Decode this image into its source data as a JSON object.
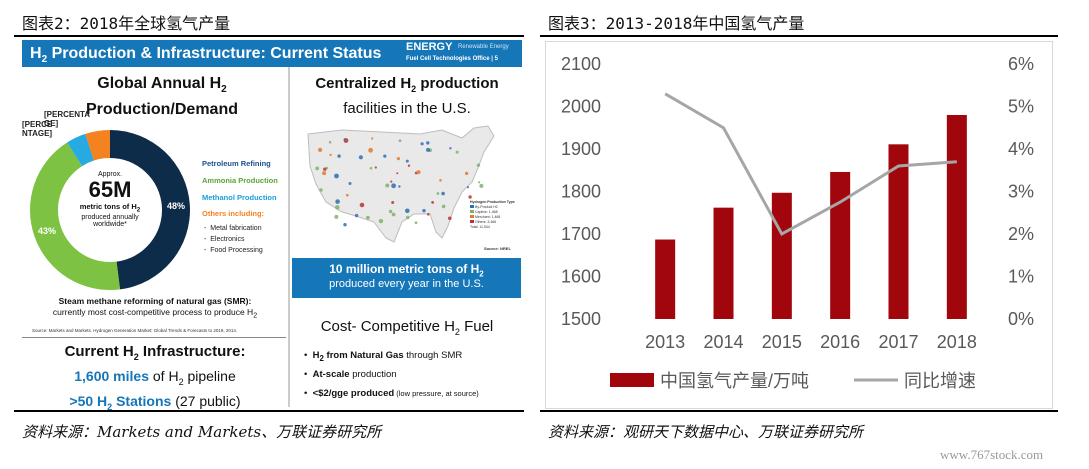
{
  "watermark_text": "www.767stock.com",
  "left_figure": {
    "title": "图表2：2018年全球氢气产量",
    "source": "资料来源：Markets and Markets、万联证券研究所",
    "infographic": {
      "banner_title_part1": "H",
      "banner_title_sub": "2",
      "banner_title_part2": " Production & Infrastructure: Current Status",
      "energy_logo": "ENERGY",
      "energy_sub1": "Renewable Energy",
      "energy_sub2": "Fuel Cell Technologies Office | 5",
      "global_heading_1": "Global Annual H",
      "global_heading_sub": "2",
      "global_heading_2": "Production/Demand",
      "donut": {
        "center_approx": "Approx.",
        "center_value": "65M",
        "center_line1": "metric tons of H",
        "center_line1_sub": "2",
        "center_line2": "produced annually",
        "center_line3": "worldwide*",
        "segments": [
          {
            "name": "Petroleum Refining",
            "value": 48,
            "label": "48%",
            "color": "#0d2c4a"
          },
          {
            "name": "Ammonia Production",
            "value": 43,
            "label": "43%",
            "color": "#7dc242"
          },
          {
            "name": "Methanol Production",
            "value": 4,
            "label": "[PERCENTAGE]",
            "color": "#27a9e1"
          },
          {
            "name": "Others",
            "value": 5,
            "label": "[PERCENTAGE]",
            "color": "#f58220"
          }
        ],
        "legend": [
          {
            "text": "Petroleum Refining",
            "color": "#1c4f8c"
          },
          {
            "text": "Ammonia Production",
            "color": "#5aa43a"
          },
          {
            "text": "Methanol Production",
            "color": "#1a9fd9"
          },
          {
            "text": "Others including:",
            "color": "#f58220"
          }
        ],
        "others_items": [
          "Metal fabrication",
          "Electronics",
          "Food Processing"
        ]
      },
      "smr_line1": "Steam methane reforming of natural gas (SMR):",
      "smr_line2": "currently most cost-competitive process to produce H",
      "smr_line2_sub": "2",
      "small_source": "Source: Markets and Markets. Hydrogen Generation Market: Global Trends & Forecasts to 2019, 2014.",
      "centralized_1": "Centralized H",
      "centralized_sub": "2",
      "centralized_2": " production",
      "centralized_3": "facilities in the U.S.",
      "map_legend_title": "Hydrogen Production Type",
      "map_legend_items": [
        "By-Product H2",
        "Captive: 1,468",
        "Merchant: 1,468",
        "Others: 3,466",
        "Total: 11,544"
      ],
      "map_source": "Source: NREL",
      "ten_million_1": "10 million metric tons of H",
      "ten_million_sub": "2",
      "ten_million_2": "produced every year in the U.S.",
      "infra_1": "Current H",
      "infra_sub": "2",
      "infra_2": " Infrastructure:",
      "pipeline_value": "1,600 miles",
      "pipeline_rest": " of H",
      "pipeline_sub": "2",
      "pipeline_end": " pipeline",
      "stations_value": ">50 H",
      "stations_sub": "2",
      "stations_mid": " Stations",
      "stations_end": " (27 public)",
      "cost_heading_1": "Cost- Competitive H",
      "cost_heading_sub": "2",
      "cost_heading_2": " Fuel",
      "bullets": [
        {
          "bold": "H",
          "sub": "2",
          "bold2": " from Natural Gas",
          "rest": " through SMR"
        },
        {
          "bold": "At-scale",
          "sub": "",
          "bold2": "",
          "rest": " production"
        },
        {
          "bold": "<$2/gge produced",
          "sub": "",
          "bold2": "",
          "rest": " (low pressure, at source)"
        }
      ]
    }
  },
  "right_figure": {
    "title": "图表3：2013-2018年中国氢气产量",
    "source": "资料来源：观研天下数据中心、万联证券研究所"
  },
  "chart_data": {
    "type": "bar",
    "categories": [
      "2013",
      "2014",
      "2015",
      "2016",
      "2017",
      "2018"
    ],
    "series": [
      {
        "name": "中国氢气产量/万吨",
        "kind": "bar",
        "axis": "left",
        "color": "#a0060b",
        "values": [
          1687,
          1762,
          1797,
          1846,
          1911,
          1980
        ]
      },
      {
        "name": "同比增速",
        "kind": "line",
        "axis": "right",
        "color": "#a6a6a6",
        "values": [
          5.3,
          4.5,
          2.0,
          2.75,
          3.6,
          3.7
        ]
      }
    ],
    "ylim_left": [
      1500,
      2100
    ],
    "yticks_left": [
      "1500",
      "1600",
      "1700",
      "1800",
      "1900",
      "2000",
      "2100"
    ],
    "ylim_right": [
      0,
      6
    ],
    "yticks_right": [
      "0%",
      "1%",
      "2%",
      "3%",
      "4%",
      "5%",
      "6%"
    ],
    "grid": false,
    "legend_position": "bottom"
  }
}
